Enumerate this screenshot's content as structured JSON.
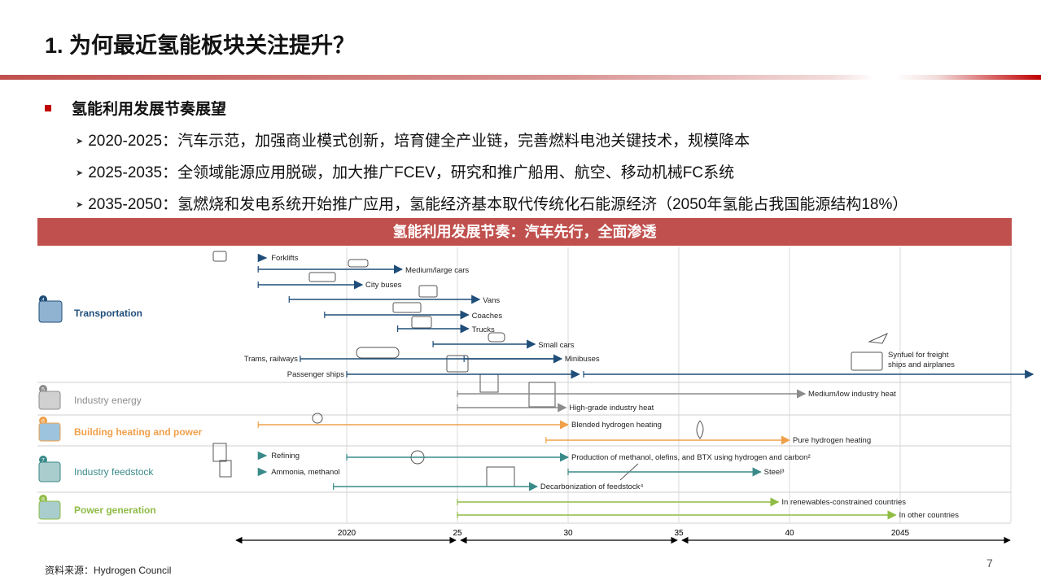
{
  "title": "1. 为何最近氢能板块关注提升？",
  "heading": "氢能利用发展节奏展望",
  "bullets": [
    "2020-2025：汽车示范，加强商业模式创新，培育健全产业链，完善燃料电池关键技术，规模降本",
    "2025-2035：全领域能源应用脱碳，加大推广FCEV，研究和推广船用、航空、移动机械FC系统",
    "2035-2050：氢燃烧和发电系统开始推广应用，氢能经济基本取代传统化石能源经济（2050年氢能占我国能源结构18%）"
  ],
  "banner": "氢能利用发展节奏：汽车先行，全面渗透",
  "source": "资料来源：Hydrogen Council",
  "page_number": "7",
  "colors": {
    "accent": "#c0504d",
    "transportation": "#1f4e79",
    "industry_energy": "#8c8c8c",
    "building": "#f0a04b",
    "feedstock": "#3a8a8a",
    "power": "#8fbc45"
  },
  "chart_data": {
    "type": "timeline",
    "axis_ticks": [
      "2020",
      "25",
      "30",
      "35",
      "40",
      "2045"
    ],
    "axis_tick_values": [
      2020,
      2025,
      2030,
      2035,
      2040,
      2045
    ],
    "segments": [
      {
        "name": "Transportation",
        "number": "4",
        "color": "#1f4e79",
        "icon": "transport-icon",
        "items": [
          {
            "label": "Forklifts",
            "label_left": true,
            "start": 2016.0,
            "end": 2016.0
          },
          {
            "label": "Medium/large cars",
            "start": 2016.0,
            "end": 2022.5
          },
          {
            "label": "City buses",
            "start": 2016.0,
            "end": 2020.7
          },
          {
            "label": "Vans",
            "start": 2017.4,
            "end": 2026.0
          },
          {
            "label": "Coaches",
            "start": 2019.0,
            "end": 2025.5
          },
          {
            "label": "Trucks",
            "start": 2022.3,
            "end": 2025.5
          },
          {
            "label": "Small cars",
            "start": 2023.9,
            "end": 2028.5
          },
          {
            "label": "Trams, railways",
            "label_left": true,
            "start": 2017.9,
            "end": 2029.7
          },
          {
            "label": "Minibuses",
            "start": 2025.3,
            "end": 2029.7
          },
          {
            "label": "Passenger ships",
            "label_left": true,
            "start": 2020.0,
            "end": 2030.5
          },
          {
            "label": "Synfuel for freight ships and airplanes",
            "start": 2030.7,
            "end": 2051.0
          }
        ]
      },
      {
        "name": "Industry energy",
        "number": "5",
        "color": "#8c8c8c",
        "icon": "factory-icon",
        "items": [
          {
            "label": "Medium/low industry heat",
            "start": 2025.0,
            "end": 2040.7
          },
          {
            "label": "High-grade industry heat",
            "start": 2025.0,
            "end": 2029.9
          }
        ]
      },
      {
        "name": "Building heating and power",
        "number": "6",
        "color": "#f0a04b",
        "icon": "building-icon",
        "items": [
          {
            "label": "Blended hydrogen heating",
            "start": 2016.0,
            "end": 2030.0
          },
          {
            "label": "Pure hydrogen heating",
            "start": 2029.0,
            "end": 2040.0
          }
        ]
      },
      {
        "name": "Industry feedstock",
        "number": "7",
        "color": "#3a8a8a",
        "icon": "plant-icon",
        "items": [
          {
            "label": "Refining",
            "label_left": true,
            "start": 2016.0,
            "end": 2016.0
          },
          {
            "label": "Production of methanol, olefins, and BTX using hydrogen and carbon²",
            "start": 2020.0,
            "end": 2030.0
          },
          {
            "label": "Ammonia, methanol",
            "label_left": true,
            "start": 2016.0,
            "end": 2016.0
          },
          {
            "label": "Steel³",
            "start": 2030.0,
            "end": 2038.7
          },
          {
            "label": "Decarbonization of feedstock⁴",
            "start": 2019.4,
            "end": 2028.6
          }
        ]
      },
      {
        "name": "Power generation",
        "number": "8",
        "color": "#8fbc45",
        "icon": "power-icon",
        "items": [
          {
            "label": "In renewables-constrained countries",
            "start": 2025.0,
            "end": 2039.5
          },
          {
            "label": "In other countries",
            "start": 2025.0,
            "end": 2044.8
          }
        ]
      }
    ]
  }
}
